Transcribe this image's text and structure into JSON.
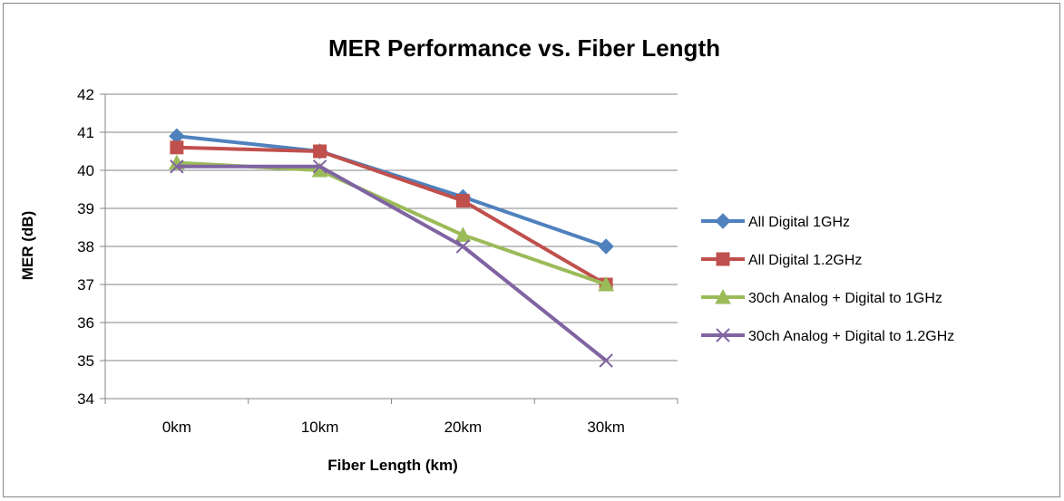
{
  "chart_data": {
    "type": "line",
    "title": "MER Performance vs. Fiber Length",
    "xlabel": "Fiber Length (km)",
    "ylabel": "MER (dB)",
    "categories": [
      "0km",
      "10km",
      "20km",
      "30km"
    ],
    "ylim": [
      34,
      42
    ],
    "yticks": [
      34,
      35,
      36,
      37,
      38,
      39,
      40,
      41,
      42
    ],
    "grid": true,
    "legend": "right",
    "series": [
      {
        "name": "All Digital 1GHz",
        "values": [
          40.9,
          40.5,
          39.3,
          38.0
        ],
        "color": "#4F81BD",
        "marker": "diamond"
      },
      {
        "name": "All Digital 1.2GHz",
        "values": [
          40.6,
          40.5,
          39.2,
          37.0
        ],
        "color": "#C0504D",
        "marker": "square"
      },
      {
        "name": "30ch Analog + Digital to 1GHz",
        "values": [
          40.2,
          40.0,
          38.3,
          37.0
        ],
        "color": "#9BBB59",
        "marker": "triangle"
      },
      {
        "name": "30ch Analog + Digital to 1.2GHz",
        "values": [
          40.1,
          40.1,
          38.0,
          35.0
        ],
        "color": "#8064A2",
        "marker": "x"
      }
    ]
  }
}
